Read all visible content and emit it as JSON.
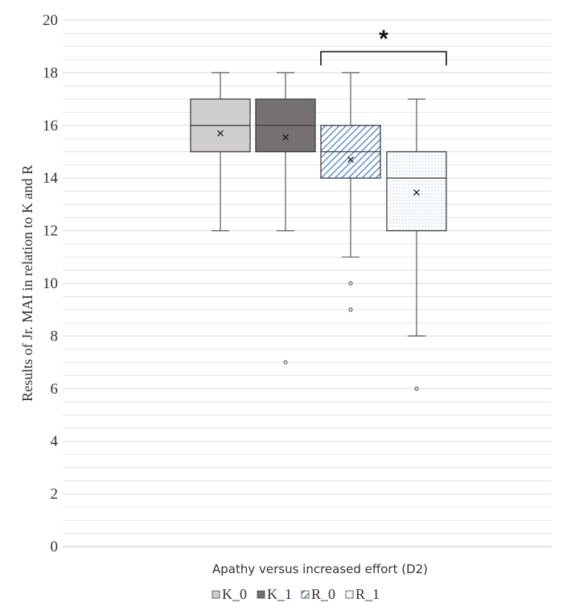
{
  "chart_data": {
    "type": "boxplot",
    "xlabel": "Apathy versus increased effort (D2)",
    "ylabel": "Results of Jr. MAI in relation to K and R",
    "ylim": [
      0,
      20
    ],
    "ytick_step": 2,
    "yticks": [
      "0",
      "2",
      "4",
      "6",
      "8",
      "10",
      "12",
      "14",
      "16",
      "18",
      "20"
    ],
    "grid": true,
    "legend_position": "bottom",
    "series": [
      {
        "name": "K_0",
        "min": 12,
        "q1": 15,
        "median": 16,
        "q3": 17,
        "max": 18,
        "mean": 15.7,
        "outliers": [],
        "fill": "#d0cece",
        "pattern": "solid"
      },
      {
        "name": "K_1",
        "min": 12,
        "q1": 15,
        "median": 16,
        "q3": 17,
        "max": 18,
        "mean": 15.55,
        "outliers": [
          7
        ],
        "fill": "#767171",
        "pattern": "solid"
      },
      {
        "name": "R_0",
        "min": 11,
        "q1": 14,
        "median": 15,
        "q3": 16,
        "max": 18,
        "mean": 14.7,
        "outliers": [
          10,
          9
        ],
        "fill": "#5b8fd0",
        "pattern": "diagonal-stripes"
      },
      {
        "name": "R_1",
        "min": 8,
        "q1": 12,
        "median": 14,
        "q3": 15,
        "max": 17,
        "mean": 13.45,
        "outliers": [
          6
        ],
        "fill": "#a9c8ee",
        "pattern": "dots"
      }
    ],
    "annotation": {
      "text": "*",
      "between": [
        "R_0",
        "R_1"
      ],
      "level": 18.8
    }
  },
  "colors": {
    "grid": "#d9d9d9",
    "axis": "#bfbfbf",
    "box_stroke": "#404040",
    "whisker": "#595959"
  }
}
